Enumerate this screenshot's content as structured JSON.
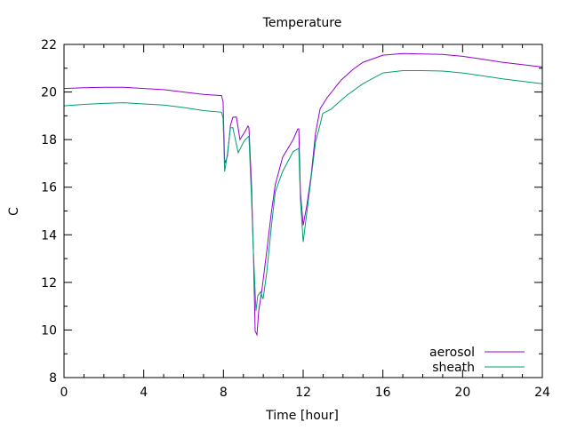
{
  "chart_data": {
    "type": "line",
    "title": "Temperature",
    "xlabel": "Time [hour]",
    "ylabel": "C",
    "xlim": [
      0,
      24
    ],
    "ylim": [
      8,
      22
    ],
    "xticks": [
      0,
      4,
      8,
      12,
      16,
      20,
      24
    ],
    "yticks": [
      8,
      10,
      12,
      14,
      16,
      18,
      20,
      22
    ],
    "grid": false,
    "legend_position": "bottom-right",
    "series": [
      {
        "name": "aerosol",
        "color": "#9400d3",
        "x": [
          0,
          1,
          2,
          3,
          4,
          5,
          6,
          7,
          7.9,
          7.98,
          8.06,
          8.2,
          8.35,
          8.47,
          8.65,
          8.83,
          9.05,
          9.23,
          9.28,
          9.41,
          9.5,
          9.59,
          9.68,
          9.77,
          9.95,
          10.17,
          10.4,
          10.6,
          10.97,
          11.5,
          11.73,
          11.78,
          11.86,
          12.0,
          12.18,
          12.4,
          12.62,
          12.85,
          13.2,
          13.9,
          14.5,
          15,
          16,
          17,
          18,
          19,
          20,
          21,
          22,
          23,
          24
        ],
        "y": [
          20.15,
          20.18,
          20.2,
          20.2,
          20.15,
          20.1,
          20.0,
          19.9,
          19.85,
          19.6,
          17.0,
          17.3,
          18.6,
          18.94,
          18.95,
          18.0,
          18.3,
          18.57,
          18.5,
          16.1,
          13.3,
          9.95,
          9.8,
          10.8,
          11.8,
          13.3,
          14.9,
          16.1,
          17.26,
          18.0,
          18.45,
          18.45,
          15.8,
          14.4,
          15.2,
          16.5,
          18.27,
          19.3,
          19.76,
          20.5,
          20.95,
          21.25,
          21.55,
          21.62,
          21.6,
          21.58,
          21.5,
          21.38,
          21.25,
          21.15,
          21.05
        ]
      },
      {
        "name": "sheath",
        "color": "#009e73",
        "x": [
          0,
          1,
          2,
          3,
          4,
          5,
          6,
          7,
          7.9,
          7.98,
          8.06,
          8.2,
          8.35,
          8.47,
          8.74,
          9.05,
          9.28,
          9.41,
          9.5,
          9.63,
          9.72,
          9.86,
          9.99,
          10.17,
          10.4,
          10.6,
          10.97,
          11.5,
          11.78,
          11.86,
          12.0,
          12.18,
          12.4,
          12.62,
          12.85,
          12.98,
          13.4,
          13.9,
          14.2,
          15,
          16,
          17,
          18,
          19,
          20,
          21,
          22,
          23,
          24
        ],
        "y": [
          19.42,
          19.48,
          19.52,
          19.55,
          19.5,
          19.45,
          19.35,
          19.22,
          19.15,
          18.9,
          16.66,
          17.4,
          18.5,
          18.5,
          17.45,
          17.96,
          18.15,
          15.54,
          13.3,
          10.8,
          11.44,
          11.6,
          11.3,
          12.4,
          14.3,
          15.8,
          16.66,
          17.5,
          17.63,
          15.5,
          13.7,
          14.9,
          16.4,
          17.9,
          18.64,
          19.1,
          19.28,
          19.65,
          19.87,
          20.35,
          20.8,
          20.9,
          20.9,
          20.88,
          20.8,
          20.68,
          20.55,
          20.45,
          20.35
        ]
      }
    ]
  }
}
